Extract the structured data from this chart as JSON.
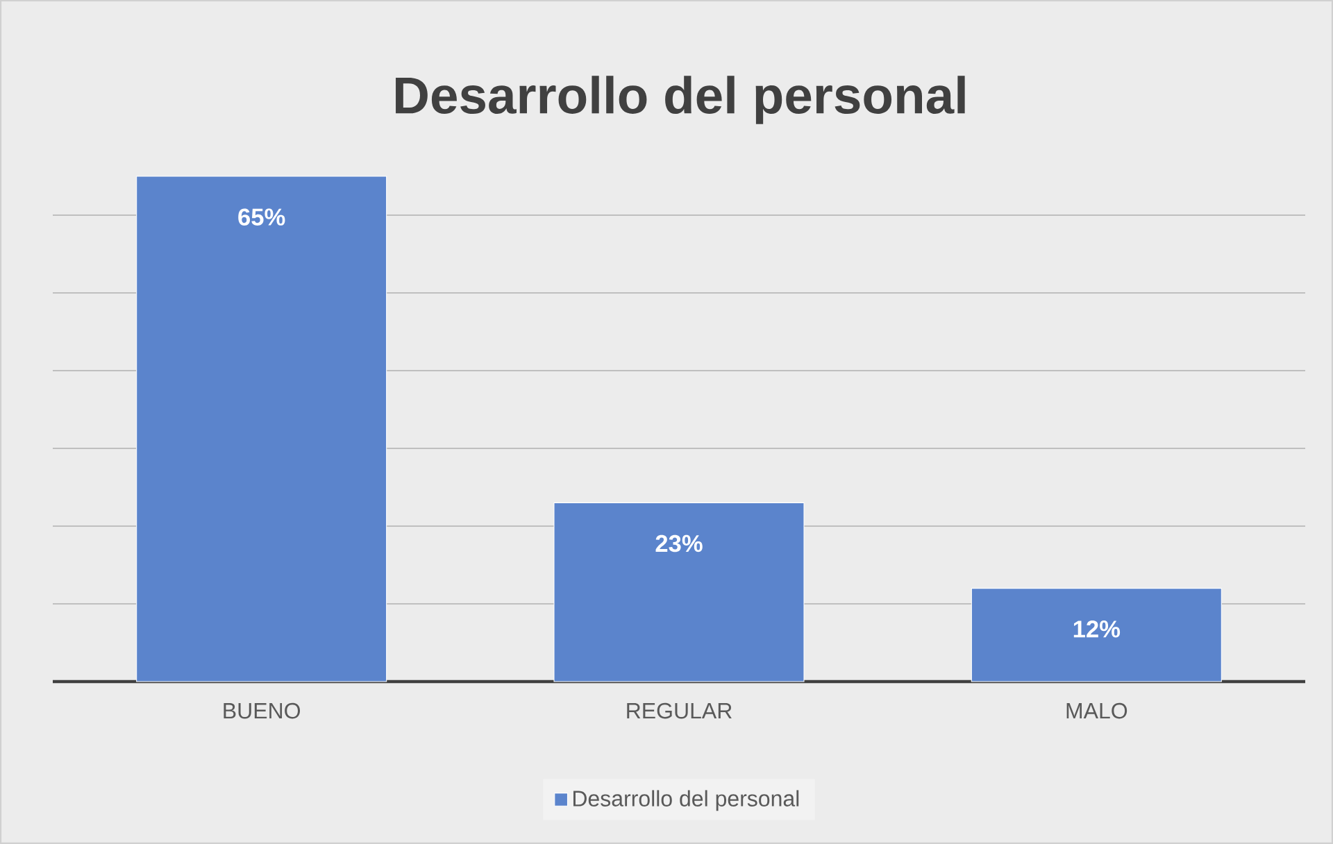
{
  "chart_data": {
    "type": "bar",
    "title": "Desarrollo del personal",
    "categories": [
      "BUENO",
      "REGULAR",
      "MALO"
    ],
    "series": [
      {
        "name": "Desarrollo del personal",
        "color": "#5b84cc",
        "values": [
          65,
          23,
          12
        ],
        "value_labels": [
          "65%",
          "23%",
          "12%"
        ]
      }
    ],
    "tick_labels": "x",
    "grid": "y",
    "legend": "bottom"
  }
}
